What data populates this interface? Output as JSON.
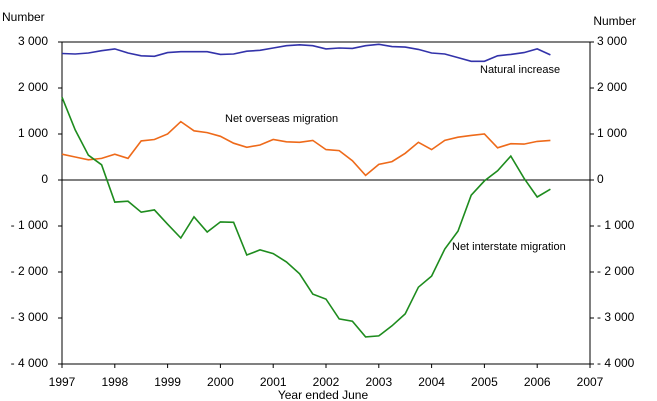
{
  "chart_data": {
    "type": "line",
    "y_label": "Number",
    "y2_label": "Number",
    "x_label": "Year ended June",
    "annotations": [
      "Natural increase",
      "Net overseas migration",
      "Net interstate migration"
    ],
    "x": [
      1997,
      1997.25,
      1997.5,
      1997.75,
      1998,
      1998.25,
      1998.5,
      1998.75,
      1999,
      1999.25,
      1999.5,
      1999.75,
      2000,
      2000.25,
      2000.5,
      2000.75,
      2001,
      2001.25,
      2001.5,
      2001.75,
      2002,
      2002.25,
      2002.5,
      2002.75,
      2003,
      2003.25,
      2003.5,
      2003.75,
      2004,
      2004.25,
      2004.5,
      2004.75,
      2005,
      2005.25,
      2005.5,
      2005.75,
      2006,
      2006.25
    ],
    "series": [
      {
        "name": "Natural increase",
        "color": "#3333aa",
        "values": [
          2750,
          2740,
          2760,
          2810,
          2850,
          2760,
          2700,
          2690,
          2770,
          2790,
          2790,
          2790,
          2730,
          2740,
          2800,
          2820,
          2870,
          2920,
          2940,
          2920,
          2850,
          2870,
          2860,
          2920,
          2950,
          2900,
          2890,
          2840,
          2760,
          2740,
          2660,
          2580,
          2580,
          2700,
          2730,
          2770,
          2850,
          2720
        ]
      },
      {
        "name": "Net overseas migration",
        "color": "#ee6a1a",
        "values": [
          560,
          500,
          440,
          470,
          560,
          470,
          850,
          880,
          1000,
          1270,
          1070,
          1030,
          950,
          800,
          710,
          760,
          880,
          830,
          820,
          860,
          660,
          640,
          420,
          100,
          340,
          400,
          580,
          820,
          660,
          860,
          930,
          970,
          1000,
          700,
          790,
          780,
          840,
          860
        ]
      },
      {
        "name": "Net interstate migration",
        "color": "#1e8c1e",
        "values": [
          1800,
          1090,
          540,
          330,
          -480,
          -460,
          -700,
          -650,
          -960,
          -1260,
          -800,
          -1130,
          -910,
          -920,
          -1630,
          -1520,
          -1600,
          -1780,
          -2040,
          -2480,
          -2590,
          -3020,
          -3070,
          -3410,
          -3390,
          -3170,
          -2910,
          -2330,
          -2090,
          -1500,
          -1110,
          -330,
          -20,
          200,
          520,
          40,
          -370,
          -200
        ]
      }
    ],
    "xlim": [
      1997,
      2007
    ],
    "xticks": [
      1997,
      1998,
      1999,
      2000,
      2001,
      2002,
      2003,
      2004,
      2005,
      2006,
      2007
    ],
    "ylim": [
      -4000,
      3000
    ],
    "yticks": [
      {
        "value": -4000,
        "label": "- 4 000"
      },
      {
        "value": -3000,
        "label": "- 3 000"
      },
      {
        "value": -2000,
        "label": "- 2 000"
      },
      {
        "value": -1000,
        "label": "- 1 000"
      },
      0,
      {
        "value": 1000,
        "label": "1 000"
      },
      {
        "value": 2000,
        "label": "2 000"
      },
      {
        "value": 3000,
        "label": "3 000"
      }
    ],
    "y2lim": [
      -4000,
      3000
    ],
    "y2ticks": [
      {
        "value": -4000,
        "label": "- 4 000"
      },
      {
        "value": -3000,
        "label": "- 3 000"
      },
      {
        "value": -2000,
        "label": "- 2 000"
      },
      {
        "value": -1000,
        "label": "- 1 000"
      },
      0,
      {
        "value": 1000,
        "label": "1 000"
      },
      {
        "value": 2000,
        "label": "2 000"
      },
      {
        "value": 3000,
        "label": "3 000"
      }
    ],
    "grid": false
  }
}
